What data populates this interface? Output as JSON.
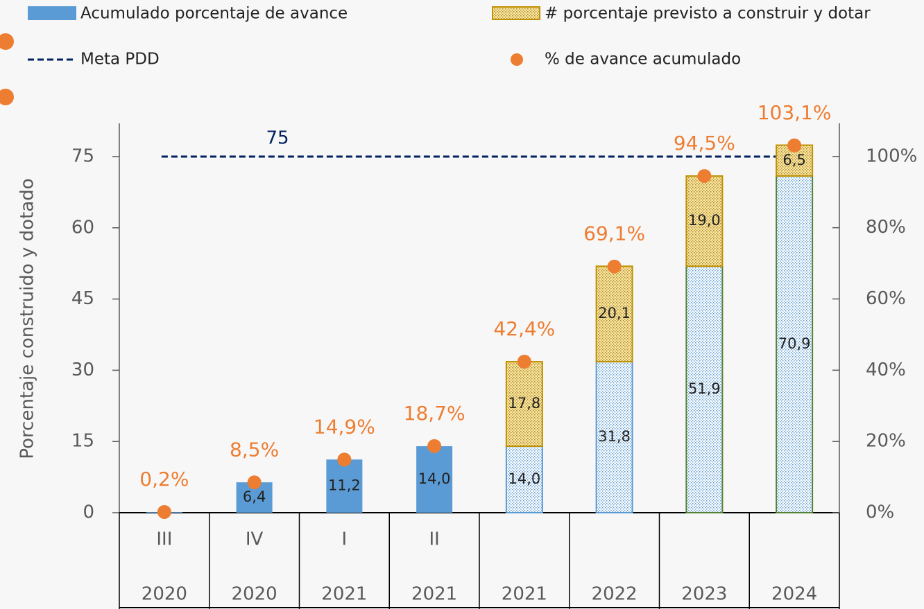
{
  "chart_data": {
    "type": "bar",
    "stacked": true,
    "y_label": "Porcentaje construido y dotado",
    "categories": [
      "III",
      "IV",
      "I",
      "II",
      null,
      null,
      null,
      null
    ],
    "years": [
      "2020",
      "2020",
      "2021",
      "2021",
      "2021",
      "2022",
      "2023",
      "2024"
    ],
    "series": [
      {
        "name": "Acumulado porcentaje de avance",
        "color": "#5b9bd5",
        "values": [
          0.15,
          6.4,
          11.2,
          14.0,
          14.0,
          31.8,
          51.9,
          70.9
        ],
        "value_labels": [
          null,
          "6,4",
          "11,2",
          "14,0",
          "14,0",
          "31,8",
          "51,9",
          "70,9"
        ]
      },
      {
        "name": "# porcentaje previsto a construir y dotar",
        "color": "#ffe699",
        "border": "#bf9000",
        "values": [
          null,
          null,
          null,
          null,
          17.8,
          20.1,
          19.0,
          6.5
        ],
        "value_labels": [
          null,
          null,
          null,
          null,
          "17,8",
          "20,1",
          "19,0",
          "6,5"
        ]
      },
      {
        "name": "% de avance acumulado",
        "type": "scatter",
        "axis": "y2",
        "color": "#ed7d31",
        "values": [
          0.2,
          8.5,
          14.9,
          18.7,
          42.4,
          69.1,
          94.5,
          103.1
        ],
        "value_labels": [
          "0,2%",
          "8,5%",
          "14,9%",
          "18,7%",
          "42,4%",
          "69,1%",
          "94,5%",
          "103,1%"
        ]
      }
    ],
    "target": {
      "name": "Meta PDD",
      "value": 75,
      "color": "#002060"
    },
    "ylim": [
      0,
      82
    ],
    "yticks": [
      0,
      15,
      30,
      45,
      60,
      75
    ],
    "y2lim": [
      0,
      109.3
    ],
    "y2ticks": [
      {
        "value": 0,
        "label": "0%"
      },
      {
        "value": 20,
        "label": "20%"
      },
      {
        "value": 40,
        "label": "40%"
      },
      {
        "value": 60,
        "label": "60%"
      },
      {
        "value": 80,
        "label": "80%"
      },
      {
        "value": 100,
        "label": "100%"
      }
    ]
  }
}
